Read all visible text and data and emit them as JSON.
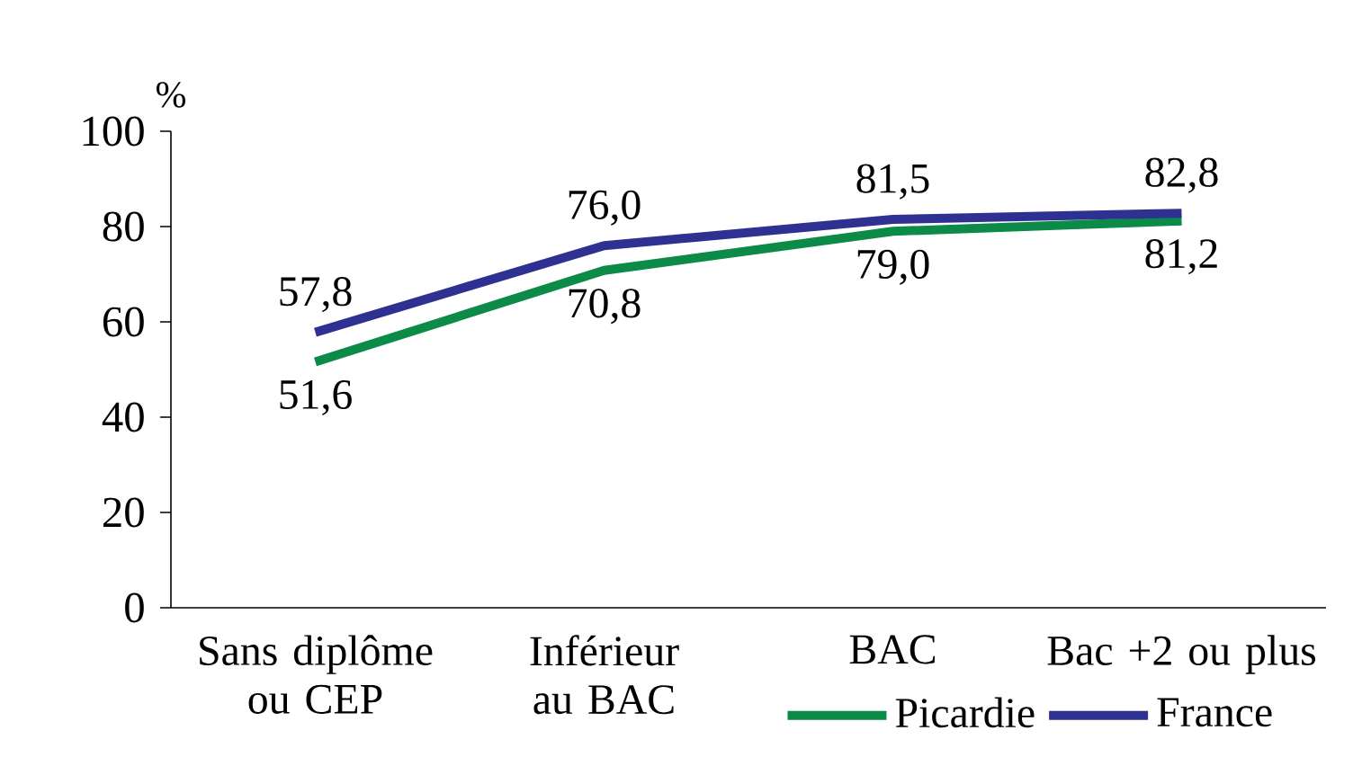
{
  "chart_data": {
    "type": "line",
    "ylabel": "%",
    "categories": [
      "Sans diplôme ou CEP",
      "Inférieur au BAC",
      "BAC",
      "Bac +2 ou plus"
    ],
    "series": [
      {
        "name": "Picardie",
        "color": "#0b8a48",
        "values": [
          51.6,
          70.8,
          79.0,
          81.2
        ],
        "value_labels": [
          "51,6",
          "70,8",
          "79,0",
          "81,2"
        ]
      },
      {
        "name": "France",
        "color": "#2e3192",
        "values": [
          57.8,
          76.0,
          81.5,
          82.8
        ],
        "value_labels": [
          "57,8",
          "76,0",
          "81,5",
          "82,8"
        ]
      }
    ],
    "ylim": [
      0,
      100
    ],
    "yticks": [
      0,
      20,
      40,
      60,
      80,
      100
    ],
    "legend": "bottom right",
    "marker": "none",
    "line_style": "solid"
  }
}
